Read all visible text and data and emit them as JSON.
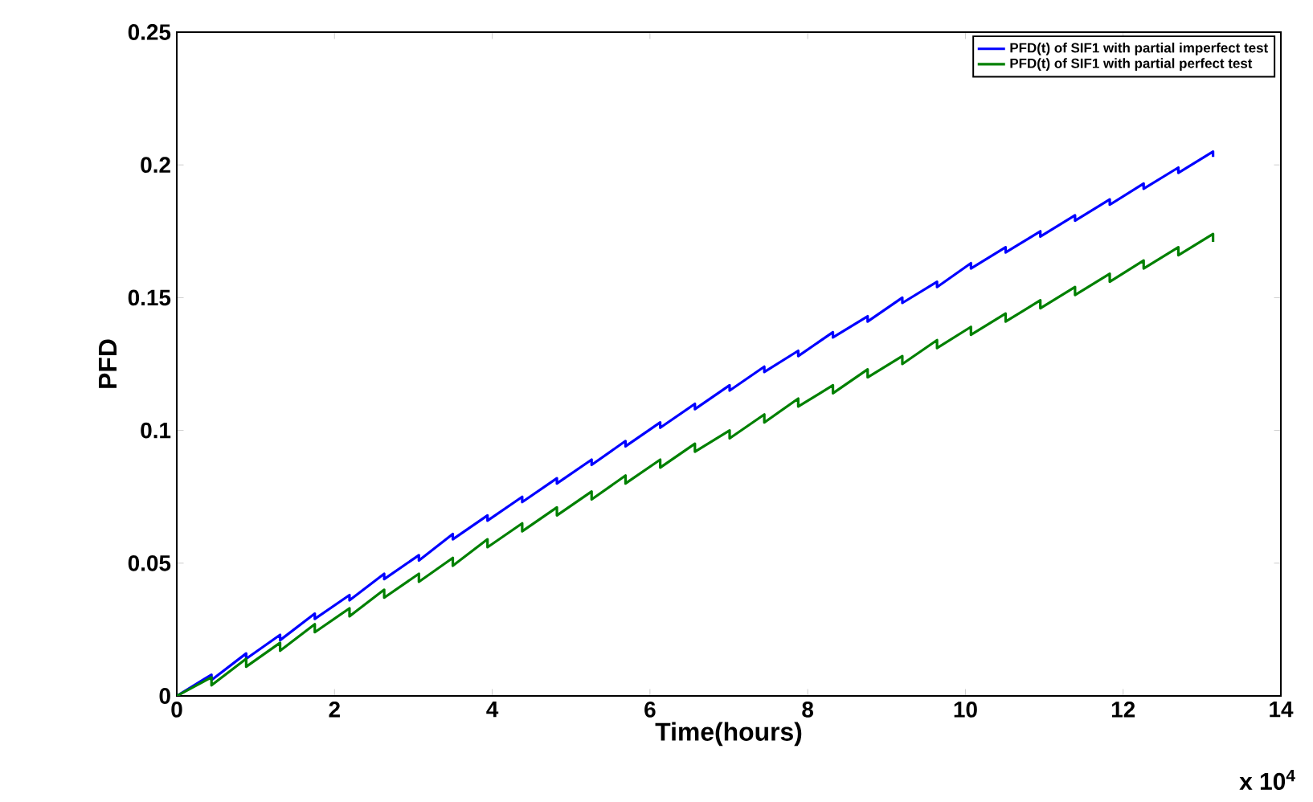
{
  "chart_data": {
    "type": "line",
    "xlabel": "Time(hours)",
    "ylabel": "PFD",
    "x": [
      0,
      0.44,
      0.44,
      0.88,
      0.88,
      1.31,
      1.31,
      1.75,
      1.75,
      2.19,
      2.19,
      2.63,
      2.63,
      3.07,
      3.07,
      3.5,
      3.5,
      3.94,
      3.94,
      4.38,
      4.38,
      4.82,
      4.82,
      5.26,
      5.26,
      5.69,
      5.69,
      6.13,
      6.13,
      6.57,
      6.57,
      7.01,
      7.01,
      7.45,
      7.45,
      7.88,
      7.88,
      8.32,
      8.32,
      8.76,
      8.76,
      9.2,
      9.2,
      9.64,
      9.64,
      10.07,
      10.07,
      10.51,
      10.51,
      10.95,
      10.95,
      11.39,
      11.39,
      11.83,
      11.83,
      12.26,
      12.26,
      12.7,
      12.7,
      13.14,
      13.14
    ],
    "series": [
      {
        "name": "PFD(t) of SIF1 with partial imperfect test",
        "color": "#0000ff",
        "values": [
          0,
          0.008,
          0.006,
          0.016,
          0.014,
          0.023,
          0.021,
          0.031,
          0.029,
          0.038,
          0.036,
          0.046,
          0.044,
          0.053,
          0.051,
          0.061,
          0.059,
          0.068,
          0.066,
          0.075,
          0.073,
          0.082,
          0.08,
          0.089,
          0.087,
          0.096,
          0.094,
          0.103,
          0.101,
          0.11,
          0.108,
          0.117,
          0.115,
          0.124,
          0.122,
          0.13,
          0.128,
          0.137,
          0.135,
          0.143,
          0.141,
          0.15,
          0.148,
          0.156,
          0.154,
          0.163,
          0.161,
          0.169,
          0.167,
          0.175,
          0.173,
          0.181,
          0.179,
          0.187,
          0.185,
          0.193,
          0.191,
          0.199,
          0.197,
          0.205,
          0.203
        ]
      },
      {
        "name": "PFD(t) of SIF1 with partial perfect test",
        "color": "#008000",
        "values": [
          0,
          0.007,
          0.004,
          0.014,
          0.011,
          0.02,
          0.017,
          0.027,
          0.024,
          0.033,
          0.03,
          0.04,
          0.037,
          0.046,
          0.043,
          0.052,
          0.049,
          0.059,
          0.056,
          0.065,
          0.062,
          0.071,
          0.068,
          0.077,
          0.074,
          0.083,
          0.08,
          0.089,
          0.086,
          0.095,
          0.092,
          0.1,
          0.097,
          0.106,
          0.103,
          0.112,
          0.109,
          0.117,
          0.114,
          0.123,
          0.12,
          0.128,
          0.125,
          0.134,
          0.131,
          0.139,
          0.136,
          0.144,
          0.141,
          0.149,
          0.146,
          0.154,
          0.151,
          0.159,
          0.156,
          0.164,
          0.161,
          0.169,
          0.166,
          0.174,
          0.171
        ]
      }
    ],
    "xlim": [
      0,
      14
    ],
    "xticks": [
      0,
      2,
      4,
      6,
      8,
      10,
      12,
      14
    ],
    "ylim": [
      0,
      0.25
    ],
    "yticks": [
      0,
      0.05,
      0.1,
      0.15,
      0.2,
      0.25
    ],
    "annotations": [
      "x 10$^{4}$"
    ],
    "legend": "top right",
    "grid": false,
    "marker": "none",
    "line_style": "solid"
  }
}
